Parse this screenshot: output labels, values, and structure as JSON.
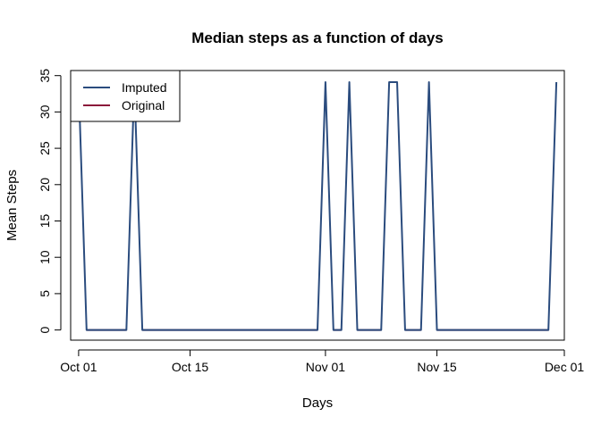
{
  "chart_data": {
    "type": "line",
    "title": "Median steps as a function of days",
    "xlabel": "Days",
    "ylabel": "Mean Steps",
    "x_tick_labels": [
      "Oct 01",
      "Oct 15",
      "Nov 01",
      "Nov 15",
      "Dec 01"
    ],
    "x_tick_dates": [
      "2012-10-01",
      "2012-10-15",
      "2012-11-01",
      "2012-11-15",
      "2012-12-01"
    ],
    "y_ticks": [
      0,
      5,
      10,
      15,
      20,
      25,
      30,
      35
    ],
    "xlim": [
      "2012-09-30",
      "2012-12-01"
    ],
    "ylim": [
      -1.4,
      35.7
    ],
    "grid": false,
    "legend_position": "top-left",
    "x": [
      "2012-10-01",
      "2012-10-02",
      "2012-10-03",
      "2012-10-04",
      "2012-10-05",
      "2012-10-06",
      "2012-10-07",
      "2012-10-08",
      "2012-10-09",
      "2012-10-10",
      "2012-10-11",
      "2012-10-12",
      "2012-10-13",
      "2012-10-14",
      "2012-10-15",
      "2012-10-16",
      "2012-10-17",
      "2012-10-18",
      "2012-10-19",
      "2012-10-20",
      "2012-10-21",
      "2012-10-22",
      "2012-10-23",
      "2012-10-24",
      "2012-10-25",
      "2012-10-26",
      "2012-10-27",
      "2012-10-28",
      "2012-10-29",
      "2012-10-30",
      "2012-10-31",
      "2012-11-01",
      "2012-11-02",
      "2012-11-03",
      "2012-11-04",
      "2012-11-05",
      "2012-11-06",
      "2012-11-07",
      "2012-11-08",
      "2012-11-09",
      "2012-11-10",
      "2012-11-11",
      "2012-11-12",
      "2012-11-13",
      "2012-11-14",
      "2012-11-15",
      "2012-11-16",
      "2012-11-17",
      "2012-11-18",
      "2012-11-19",
      "2012-11-20",
      "2012-11-21",
      "2012-11-22",
      "2012-11-23",
      "2012-11-24",
      "2012-11-25",
      "2012-11-26",
      "2012-11-27",
      "2012-11-28",
      "2012-11-29",
      "2012-11-30"
    ],
    "series": [
      {
        "name": "Original",
        "color": "#8B1A3A",
        "values": [
          null,
          0,
          0,
          0,
          0,
          0,
          0,
          null,
          0,
          0,
          0,
          0,
          0,
          0,
          0,
          0,
          0,
          0,
          0,
          0,
          0,
          0,
          0,
          0,
          0,
          0,
          0,
          0,
          0,
          0,
          0,
          null,
          0,
          0,
          null,
          0,
          0,
          0,
          0,
          null,
          null,
          0,
          0,
          0,
          null,
          0,
          0,
          0,
          0,
          0,
          0,
          0,
          0,
          0,
          0,
          0,
          0,
          0,
          0,
          0,
          null
        ]
      },
      {
        "name": "Imputed",
        "color": "#2B4C7E",
        "values": [
          34.1,
          0,
          0,
          0,
          0,
          0,
          0,
          34.1,
          0,
          0,
          0,
          0,
          0,
          0,
          0,
          0,
          0,
          0,
          0,
          0,
          0,
          0,
          0,
          0,
          0,
          0,
          0,
          0,
          0,
          0,
          0,
          34.1,
          0,
          0,
          34.1,
          0,
          0,
          0,
          0,
          34.1,
          34.1,
          0,
          0,
          0,
          34.1,
          0,
          0,
          0,
          0,
          0,
          0,
          0,
          0,
          0,
          0,
          0,
          0,
          0,
          0,
          0,
          34.1
        ]
      }
    ],
    "legend": [
      {
        "label": "Imputed",
        "color": "#2B4C7E"
      },
      {
        "label": "Original",
        "color": "#8B1A3A"
      }
    ]
  }
}
